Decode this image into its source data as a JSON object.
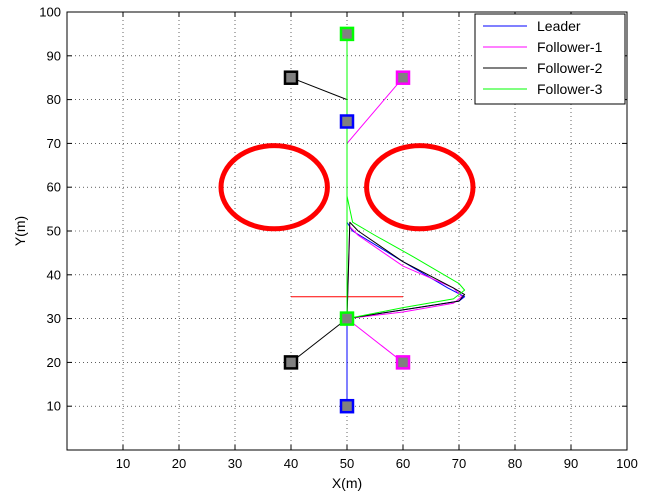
{
  "chart_data": {
    "type": "line",
    "title": "",
    "xlabel": "X(m)",
    "ylabel": "Y(m)",
    "xlim": [
      0,
      100
    ],
    "ylim": [
      0,
      100
    ],
    "xticks": [
      10,
      20,
      30,
      40,
      50,
      60,
      70,
      80,
      90,
      100
    ],
    "yticks": [
      10,
      20,
      30,
      40,
      50,
      60,
      70,
      80,
      90,
      100
    ],
    "grid": true,
    "legend_position": "top-right",
    "series": [
      {
        "name": "Leader",
        "color": "#0000ff",
        "points": [
          [
            50,
            10
          ],
          [
            50,
            30
          ],
          [
            50,
            52
          ],
          [
            51,
            50
          ],
          [
            60,
            43
          ],
          [
            68,
            37
          ],
          [
            71,
            35
          ],
          [
            70,
            34
          ],
          [
            60,
            32
          ],
          [
            50,
            30
          ],
          [
            50,
            52
          ],
          [
            50,
            75
          ]
        ]
      },
      {
        "name": "Follower-1",
        "color": "#ff00ff",
        "points": [
          [
            60,
            20
          ],
          [
            50,
            30
          ],
          [
            50.5,
            51
          ],
          [
            52,
            49
          ],
          [
            60,
            42
          ],
          [
            69,
            37
          ],
          [
            70.5,
            35
          ],
          [
            69,
            33.5
          ],
          [
            60,
            31.5
          ],
          [
            50,
            30
          ],
          [
            50,
            70
          ],
          [
            60,
            85
          ]
        ]
      },
      {
        "name": "Follower-2",
        "color": "#000000",
        "points": [
          [
            40,
            20
          ],
          [
            50,
            30
          ],
          [
            50.5,
            52
          ],
          [
            52,
            50
          ],
          [
            60,
            43
          ],
          [
            69,
            37
          ],
          [
            71,
            35.5
          ],
          [
            70,
            34
          ],
          [
            60,
            32
          ],
          [
            50,
            30
          ],
          [
            50,
            80
          ],
          [
            40,
            85
          ]
        ]
      },
      {
        "name": "Follower-3",
        "color": "#00ff00",
        "points": [
          [
            50,
            30
          ],
          [
            50,
            58
          ],
          [
            51,
            52
          ],
          [
            55,
            49
          ],
          [
            62,
            44
          ],
          [
            70,
            38
          ],
          [
            71,
            36.5
          ],
          [
            69,
            34.5
          ],
          [
            60,
            32.5
          ],
          [
            50,
            30
          ],
          [
            50,
            95
          ]
        ]
      }
    ],
    "markers": [
      {
        "x": 50,
        "y": 10,
        "color": "#0000ff"
      },
      {
        "x": 60,
        "y": 20,
        "color": "#ff00ff"
      },
      {
        "x": 40,
        "y": 20,
        "color": "#000000"
      },
      {
        "x": 50,
        "y": 30,
        "color": "#00ff00"
      },
      {
        "x": 50,
        "y": 75,
        "color": "#0000ff"
      },
      {
        "x": 60,
        "y": 85,
        "color": "#ff00ff"
      },
      {
        "x": 40,
        "y": 85,
        "color": "#000000"
      },
      {
        "x": 50,
        "y": 95,
        "color": "#00ff00"
      }
    ],
    "obstacles": [
      {
        "cx": 37,
        "cy": 60,
        "rx": 9.5,
        "ry": 9.5,
        "color": "#ff0000"
      },
      {
        "cx": 63,
        "cy": 60,
        "rx": 9.5,
        "ry": 9.5,
        "color": "#ff0000"
      }
    ],
    "segments": [
      {
        "x1": 40,
        "y1": 35,
        "x2": 60,
        "y2": 35,
        "color": "#ff0000"
      }
    ]
  }
}
